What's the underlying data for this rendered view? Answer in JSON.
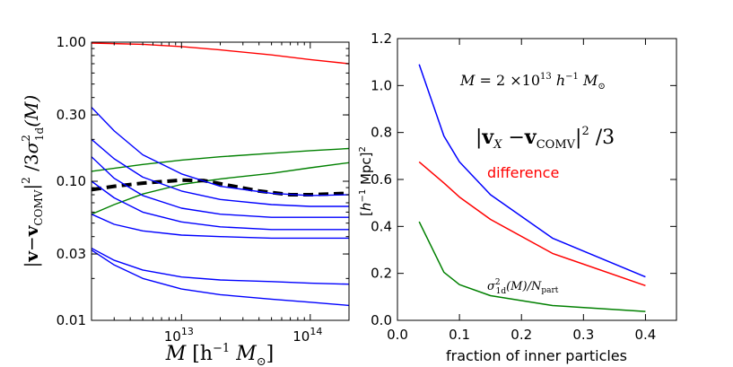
{
  "chart_data": [
    {
      "type": "line",
      "xscale": "log",
      "yscale": "log",
      "xlim": [
        2000000000000.0,
        200000000000000.0
      ],
      "ylim": [
        0.01,
        1.0
      ],
      "yticks": [
        {
          "v": 1.0,
          "label": "1.00"
        },
        {
          "v": 0.3,
          "label": "0.30"
        },
        {
          "v": 0.1,
          "label": "0.10"
        },
        {
          "v": 0.03,
          "label": "0.03"
        },
        {
          "v": 0.01,
          "label": "0.01"
        }
      ],
      "xticks": [
        {
          "v": 10000000000000.0,
          "base": "10",
          "exp": "13"
        },
        {
          "v": 100000000000000.0,
          "base": "10",
          "exp": "14"
        }
      ],
      "xlabel": {
        "pre": "M",
        "bracket_open": " [h",
        "exp": "−1",
        "mid": " M",
        "sub": "⊙",
        "close": "]"
      },
      "ylabel": "|v − vCOMV|² / 3σ²1d(M)",
      "ylabel_parts": {
        "bar1": "|",
        "v": "v",
        "minus": "−",
        "vc": "v",
        "sub": "COMV",
        "bar2": "|",
        "sq": "2",
        "slash": " /3",
        "sigma": "σ",
        "sig_sup": "2",
        "sig_sub": "1d",
        "m": "(M)"
      },
      "series": [
        {
          "name": "red",
          "color": "#ff0000",
          "dash": false,
          "x": [
            2000000000000.0,
            5000000000000.0,
            10000000000000.0,
            20000000000000.0,
            50000000000000.0,
            100000000000000.0,
            200000000000000.0
          ],
          "y": [
            0.985,
            0.965,
            0.93,
            0.88,
            0.81,
            0.75,
            0.7
          ]
        },
        {
          "name": "green-upper",
          "color": "#008000",
          "dash": false,
          "x": [
            2000000000000.0,
            5000000000000.0,
            10000000000000.0,
            20000000000000.0,
            50000000000000.0,
            100000000000000.0,
            200000000000000.0
          ],
          "y": [
            0.118,
            0.132,
            0.142,
            0.15,
            0.159,
            0.166,
            0.172
          ]
        },
        {
          "name": "green-lower",
          "color": "#008000",
          "dash": false,
          "x": [
            2000000000000.0,
            3000000000000.0,
            5000000000000.0,
            10000000000000.0,
            20000000000000.0,
            50000000000000.0,
            100000000000000.0,
            200000000000000.0
          ],
          "y": [
            0.058,
            0.068,
            0.081,
            0.095,
            0.104,
            0.114,
            0.125,
            0.136
          ]
        },
        {
          "name": "black-dashed",
          "color": "#000000",
          "dash": true,
          "x": [
            2000000000000.0,
            3000000000000.0,
            5000000000000.0,
            10000000000000.0,
            15000000000000.0,
            20000000000000.0,
            40000000000000.0,
            70000000000000.0,
            100000000000000.0,
            200000000000000.0
          ],
          "y": [
            0.087,
            0.092,
            0.097,
            0.102,
            0.101,
            0.096,
            0.085,
            0.08,
            0.08,
            0.082
          ]
        },
        {
          "name": "blue-1",
          "color": "#0000ff",
          "dash": false,
          "x": [
            2000000000000.0,
            3000000000000.0,
            5000000000000.0,
            10000000000000.0,
            20000000000000.0,
            50000000000000.0,
            100000000000000.0,
            200000000000000.0
          ],
          "y": [
            0.34,
            0.23,
            0.155,
            0.113,
            0.092,
            0.082,
            0.079,
            0.08
          ]
        },
        {
          "name": "blue-2",
          "color": "#0000ff",
          "dash": false,
          "x": [
            2000000000000.0,
            3000000000000.0,
            5000000000000.0,
            10000000000000.0,
            20000000000000.0,
            50000000000000.0,
            100000000000000.0,
            200000000000000.0
          ],
          "y": [
            0.2,
            0.145,
            0.107,
            0.085,
            0.074,
            0.068,
            0.066,
            0.066
          ]
        },
        {
          "name": "blue-3",
          "color": "#0000ff",
          "dash": false,
          "x": [
            2000000000000.0,
            3000000000000.0,
            5000000000000.0,
            10000000000000.0,
            20000000000000.0,
            50000000000000.0,
            100000000000000.0,
            200000000000000.0
          ],
          "y": [
            0.15,
            0.105,
            0.079,
            0.064,
            0.058,
            0.055,
            0.055,
            0.055
          ]
        },
        {
          "name": "blue-4",
          "color": "#0000ff",
          "dash": false,
          "x": [
            2000000000000.0,
            3000000000000.0,
            5000000000000.0,
            10000000000000.0,
            20000000000000.0,
            50000000000000.0,
            100000000000000.0,
            200000000000000.0
          ],
          "y": [
            0.1,
            0.076,
            0.06,
            0.051,
            0.047,
            0.045,
            0.045,
            0.045
          ]
        },
        {
          "name": "blue-5",
          "color": "#0000ff",
          "dash": false,
          "x": [
            2000000000000.0,
            3000000000000.0,
            5000000000000.0,
            10000000000000.0,
            20000000000000.0,
            50000000000000.0,
            100000000000000.0,
            200000000000000.0
          ],
          "y": [
            0.058,
            0.049,
            0.044,
            0.041,
            0.04,
            0.039,
            0.039,
            0.039
          ]
        },
        {
          "name": "blue-6",
          "color": "#0000ff",
          "dash": false,
          "x": [
            2000000000000.0,
            3000000000000.0,
            5000000000000.0,
            10000000000000.0,
            20000000000000.0,
            50000000000000.0,
            100000000000000.0,
            200000000000000.0
          ],
          "y": [
            0.033,
            0.027,
            0.023,
            0.0205,
            0.0195,
            0.019,
            0.0185,
            0.0182
          ]
        },
        {
          "name": "blue-7",
          "color": "#0000ff",
          "dash": false,
          "x": [
            2000000000000.0,
            3000000000000.0,
            5000000000000.0,
            10000000000000.0,
            20000000000000.0,
            50000000000000.0,
            100000000000000.0,
            200000000000000.0
          ],
          "y": [
            0.032,
            0.025,
            0.02,
            0.0168,
            0.0153,
            0.0142,
            0.0135,
            0.0128
          ]
        }
      ]
    },
    {
      "type": "line",
      "xlim": [
        0.0,
        0.45
      ],
      "ylim": [
        0.0,
        1.2
      ],
      "xticks": [
        "0.0",
        "0.1",
        "0.2",
        "0.3",
        "0.4"
      ],
      "yticks": [
        "0.0",
        "0.2",
        "0.4",
        "0.6",
        "0.8",
        "1.0",
        "1.2"
      ],
      "xlabel": "fraction of inner particles",
      "ylabel": "[h⁻¹ Mpc]²",
      "ylabel_parts": {
        "open": "[",
        "h": "h",
        "exp": "−1",
        "mpc": " Mpc]",
        "sq": "2"
      },
      "annotation": {
        "M": "M",
        "eq": " = 2 ×10",
        "exp13": "13",
        "h": " h",
        "exp1": "−1",
        "Msun": " M",
        "sun": "⊙"
      },
      "series": [
        {
          "name": "|vX − vCOMV|² / 3",
          "color": "#0000ff",
          "x": [
            0.035,
            0.075,
            0.1,
            0.15,
            0.25,
            0.4
          ],
          "y": [
            1.09,
            0.785,
            0.675,
            0.535,
            0.35,
            0.185
          ]
        },
        {
          "name": "difference",
          "color": "#ff0000",
          "x": [
            0.035,
            0.075,
            0.1,
            0.15,
            0.25,
            0.4
          ],
          "y": [
            0.675,
            0.585,
            0.525,
            0.43,
            0.285,
            0.148
          ]
        },
        {
          "name": "σ²1d(M)/Npart",
          "color": "#008000",
          "x": [
            0.035,
            0.075,
            0.1,
            0.15,
            0.25,
            0.4
          ],
          "y": [
            0.42,
            0.205,
            0.152,
            0.105,
            0.063,
            0.038
          ]
        }
      ],
      "legend": {
        "blue": {
          "bar1": "|",
          "v": "v",
          "vsub": "X",
          "minus": " −",
          "vc": "v",
          "vcsub": "COMV",
          "bar2": "|",
          "sq": "2",
          "tail": " /3"
        },
        "red": "difference",
        "green": {
          "sigma": "σ",
          "sup": "2",
          "sub": "1d",
          "m": "(M)/N",
          "nsub": "part"
        }
      }
    }
  ]
}
